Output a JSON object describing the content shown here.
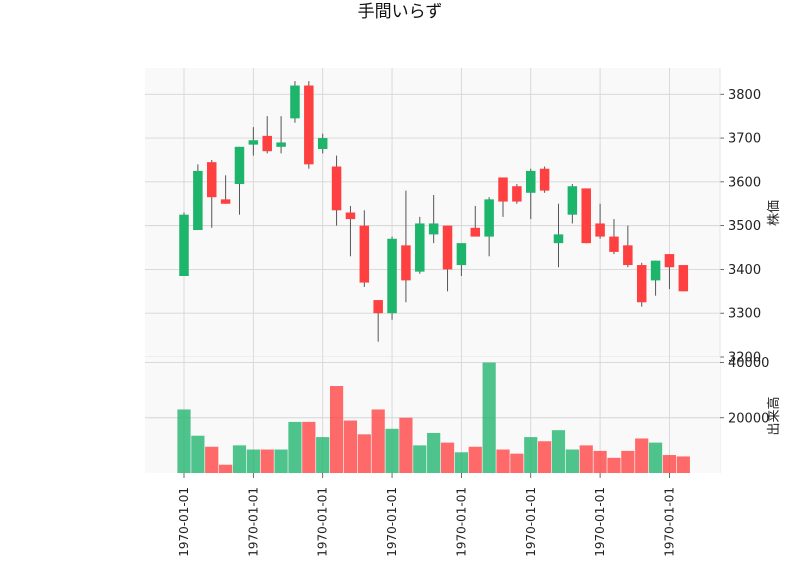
{
  "chart_data": {
    "type": "candlestick",
    "title": "手間いらず",
    "price_panel": {
      "ylabel": "株価",
      "ylim": [
        3200,
        3860
      ],
      "yticks": [
        3200,
        3300,
        3400,
        3500,
        3600,
        3700,
        3800
      ],
      "grid": true
    },
    "volume_panel": {
      "ylabel": "出来高",
      "ylim": [
        0,
        42000
      ],
      "yticks": [
        20000,
        40000
      ],
      "grid": true
    },
    "x_tick_labels": [
      "1970-01-01",
      "1970-01-01",
      "1970-01-01",
      "1970-01-01",
      "1970-01-01",
      "1970-01-01",
      "1970-01-01",
      "1970-01-01"
    ],
    "x_tick_positions": [
      0,
      5,
      10,
      15,
      20,
      25,
      30,
      35
    ],
    "colors": {
      "up": "#1db46c",
      "down": "#ff4040",
      "wick": "#555555",
      "grid": "#d6d6d6",
      "panel_bg": "#f9f9f9"
    },
    "candles": [
      {
        "open": 3385,
        "high": 3530,
        "low": 3385,
        "close": 3525,
        "volume": 23000
      },
      {
        "open": 3490,
        "high": 3640,
        "low": 3490,
        "close": 3625,
        "volume": 13500
      },
      {
        "open": 3645,
        "high": 3650,
        "low": 3495,
        "close": 3565,
        "volume": 9500
      },
      {
        "open": 3560,
        "high": 3615,
        "low": 3550,
        "close": 3550,
        "volume": 3000
      },
      {
        "open": 3595,
        "high": 3680,
        "low": 3525,
        "close": 3680,
        "volume": 10000
      },
      {
        "open": 3685,
        "high": 3725,
        "low": 3660,
        "close": 3695,
        "volume": 8500
      },
      {
        "open": 3705,
        "high": 3750,
        "low": 3665,
        "close": 3670,
        "volume": 8500
      },
      {
        "open": 3680,
        "high": 3750,
        "low": 3665,
        "close": 3690,
        "volume": 8500
      },
      {
        "open": 3745,
        "high": 3830,
        "low": 3735,
        "close": 3820,
        "volume": 18500
      },
      {
        "open": 3820,
        "high": 3830,
        "low": 3630,
        "close": 3640,
        "volume": 18500
      },
      {
        "open": 3675,
        "high": 3710,
        "low": 3665,
        "close": 3700,
        "volume": 13000
      },
      {
        "open": 3635,
        "high": 3660,
        "low": 3500,
        "close": 3535,
        "volume": 31500
      },
      {
        "open": 3530,
        "high": 3545,
        "low": 3430,
        "close": 3515,
        "volume": 19000
      },
      {
        "open": 3500,
        "high": 3535,
        "low": 3360,
        "close": 3370,
        "volume": 14000
      },
      {
        "open": 3330,
        "high": 3330,
        "low": 3235,
        "close": 3300,
        "volume": 23000
      },
      {
        "open": 3300,
        "high": 3475,
        "low": 3285,
        "close": 3470,
        "volume": 16000
      },
      {
        "open": 3455,
        "high": 3580,
        "low": 3325,
        "close": 3375,
        "volume": 20000
      },
      {
        "open": 3395,
        "high": 3520,
        "low": 3390,
        "close": 3505,
        "volume": 10000
      },
      {
        "open": 3480,
        "high": 3570,
        "low": 3460,
        "close": 3505,
        "volume": 14500
      },
      {
        "open": 3500,
        "high": 3500,
        "low": 3350,
        "close": 3400,
        "volume": 11000
      },
      {
        "open": 3410,
        "high": 3460,
        "low": 3385,
        "close": 3460,
        "volume": 7500
      },
      {
        "open": 3495,
        "high": 3545,
        "low": 3475,
        "close": 3475,
        "volume": 9500
      },
      {
        "open": 3475,
        "high": 3565,
        "low": 3430,
        "close": 3560,
        "volume": 40000
      },
      {
        "open": 3610,
        "high": 3610,
        "low": 3520,
        "close": 3555,
        "volume": 8500
      },
      {
        "open": 3590,
        "high": 3595,
        "low": 3550,
        "close": 3555,
        "volume": 7000
      },
      {
        "open": 3575,
        "high": 3630,
        "low": 3515,
        "close": 3625,
        "volume": 13000
      },
      {
        "open": 3630,
        "high": 3635,
        "low": 3575,
        "close": 3580,
        "volume": 11500
      },
      {
        "open": 3460,
        "high": 3550,
        "low": 3405,
        "close": 3480,
        "volume": 15500
      },
      {
        "open": 3525,
        "high": 3595,
        "low": 3505,
        "close": 3590,
        "volume": 8500
      },
      {
        "open": 3585,
        "high": 3585,
        "low": 3460,
        "close": 3460,
        "volume": 10000
      },
      {
        "open": 3505,
        "high": 3550,
        "low": 3470,
        "close": 3475,
        "volume": 8000
      },
      {
        "open": 3475,
        "high": 3515,
        "low": 3435,
        "close": 3440,
        "volume": 5500
      },
      {
        "open": 3455,
        "high": 3500,
        "low": 3405,
        "close": 3410,
        "volume": 8000
      },
      {
        "open": 3410,
        "high": 3415,
        "low": 3315,
        "close": 3325,
        "volume": 12500
      },
      {
        "open": 3375,
        "high": 3420,
        "low": 3340,
        "close": 3420,
        "volume": 11000
      },
      {
        "open": 3435,
        "high": 3435,
        "low": 3355,
        "close": 3405,
        "volume": 6500
      },
      {
        "open": 3410,
        "high": 3410,
        "low": 3350,
        "close": 3350,
        "volume": 6000
      }
    ]
  }
}
